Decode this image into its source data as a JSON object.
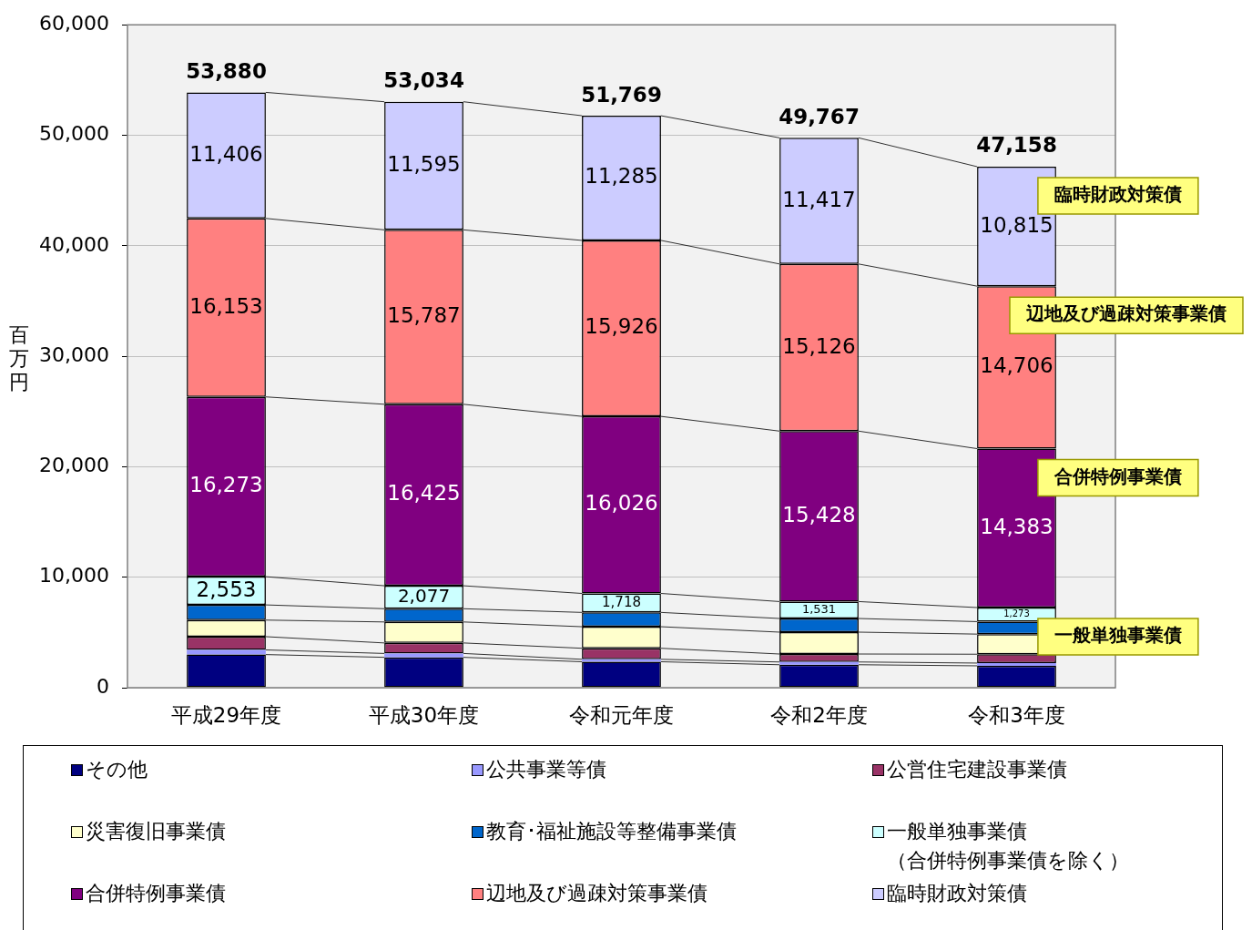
{
  "chart_data": {
    "type": "bar",
    "stacked": true,
    "categories": [
      "平成29年度",
      "平成30年度",
      "令和元年度",
      "令和2年度",
      "令和3年度"
    ],
    "ylabel": "百万円",
    "ylim": [
      0,
      60000
    ],
    "yticks": [
      0,
      {
        "value": 10000,
        "label": "10,000"
      },
      {
        "value": 20000,
        "label": "20,000"
      },
      {
        "value": 30000,
        "label": "30,000"
      },
      {
        "value": 40000,
        "label": "40,000"
      },
      {
        "value": 50000,
        "label": "50,000"
      },
      {
        "value": 60000,
        "label": "60,000"
      }
    ],
    "grid": "y",
    "legend": "bottom",
    "totals": [
      "53,880",
      "53,034",
      "51,769",
      "49,767",
      "47,158"
    ],
    "series": [
      {
        "name": "その他",
        "color": "#000080",
        "values": [
          3000,
          2750,
          2350,
          2080,
          1980
        ]
      },
      {
        "name": "公共事業等債",
        "color": "#9999ff",
        "values": [
          420,
          350,
          220,
          250,
          250
        ]
      },
      {
        "name": "公営住宅建設事業債",
        "color": "#993366",
        "values": [
          1200,
          950,
          1000,
          720,
          800
        ]
      },
      {
        "name": "災害復旧事業債",
        "color": "#ffffcc",
        "values": [
          1500,
          1900,
          1950,
          1980,
          1820
        ]
      },
      {
        "name": "教育･福祉施設等整備事業債",
        "color": "#0066cc",
        "values": [
          1375,
          1200,
          1294,
          1235,
          1131
        ]
      },
      {
        "name": "一般単独事業債（合併特例事業債を除く）",
        "color": "#ccffff",
        "values": [
          2553,
          2077,
          1718,
          1531,
          1273
        ],
        "value_labels": [
          "2,553",
          "2,077",
          "1,718",
          "1,531",
          "1,273"
        ]
      },
      {
        "name": "合併特例事業債",
        "color": "#800080",
        "values": [
          16273,
          16425,
          16026,
          15428,
          14383
        ],
        "value_labels": [
          "16,273",
          "16,425",
          "16,026",
          "15,428",
          "14,383"
        ]
      },
      {
        "name": "辺地及び過疎対策事業債",
        "color": "#ff8080",
        "values": [
          16153,
          15787,
          15926,
          15126,
          14706
        ],
        "value_labels": [
          "16,153",
          "15,787",
          "15,926",
          "15,126",
          "14,706"
        ]
      },
      {
        "name": "臨時財政対策債",
        "color": "#ccccff",
        "values": [
          11406,
          11595,
          11285,
          11417,
          10815
        ],
        "value_labels": [
          "11,406",
          "11,595",
          "11,285",
          "11,417",
          "10,815"
        ]
      }
    ],
    "annotations": [
      {
        "text": "臨時財政対策債",
        "x": "令和3年度",
        "y": 47158
      },
      {
        "text": "辺地及び過疎対策事業債",
        "x": "令和3年度",
        "y": 36343
      },
      {
        "text": "合併特例事業債",
        "x": "令和3年度",
        "y": 21637
      },
      {
        "text": "一般単独事業債",
        "x": "令和3年度",
        "y": 7254
      }
    ]
  }
}
